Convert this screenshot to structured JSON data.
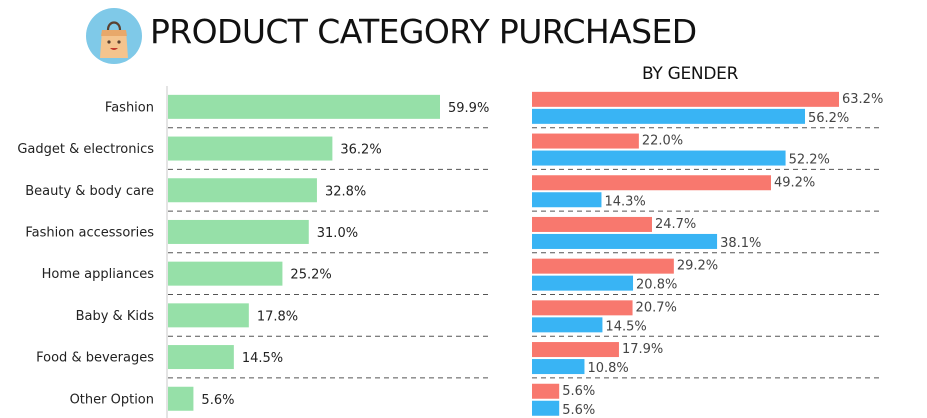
{
  "header": {
    "title": "PRODUCT CATEGORY PURCHASED",
    "subtitle": "BY GENDER",
    "icon": "shopping-bag-icon"
  },
  "colors": {
    "overall": "#96E0A8",
    "female": "#F8786E",
    "male": "#39B4F4",
    "icon_circle": "#7FC9E8",
    "icon_bag": "#F4C48E"
  },
  "chart_data": [
    {
      "type": "bar",
      "orientation": "horizontal",
      "categories": [
        "Fashion",
        "Gadget & electronics",
        "Beauty & body care",
        "Fashion accessories",
        "Home appliances",
        "Baby & Kids",
        "Food & beverages",
        "Other Option"
      ],
      "values": [
        59.9,
        36.2,
        32.8,
        31.0,
        25.2,
        17.8,
        14.5,
        5.6
      ],
      "value_labels": [
        "59.9%",
        "36.2%",
        "32.8%",
        "31.0%",
        "25.2%",
        "17.8%",
        "14.5%",
        "5.6%"
      ],
      "xlim": [
        0,
        100
      ],
      "grid": false
    },
    {
      "type": "bar",
      "orientation": "horizontal",
      "categories": [
        "Fashion",
        "Gadget & electronics",
        "Beauty & body care",
        "Fashion accessories",
        "Home appliances",
        "Baby & Kids",
        "Food & beverages",
        "Other Option"
      ],
      "series": [
        {
          "values": [
            63.2,
            22.0,
            49.2,
            24.7,
            29.2,
            20.7,
            17.9,
            5.6
          ],
          "labels": [
            "63.2%",
            "22.0%",
            "49.2%",
            "24.7%",
            "29.2%",
            "20.7%",
            "17.9%",
            "5.6%"
          ]
        },
        {
          "values": [
            56.2,
            52.2,
            14.3,
            38.1,
            20.8,
            14.5,
            10.8,
            5.6
          ],
          "labels": [
            "56.2%",
            "52.2%",
            "14.3%",
            "38.1%",
            "20.8%",
            "14.5%",
            "10.8%",
            "5.6%"
          ]
        }
      ],
      "xlim": [
        0,
        100
      ],
      "grid": false
    }
  ]
}
